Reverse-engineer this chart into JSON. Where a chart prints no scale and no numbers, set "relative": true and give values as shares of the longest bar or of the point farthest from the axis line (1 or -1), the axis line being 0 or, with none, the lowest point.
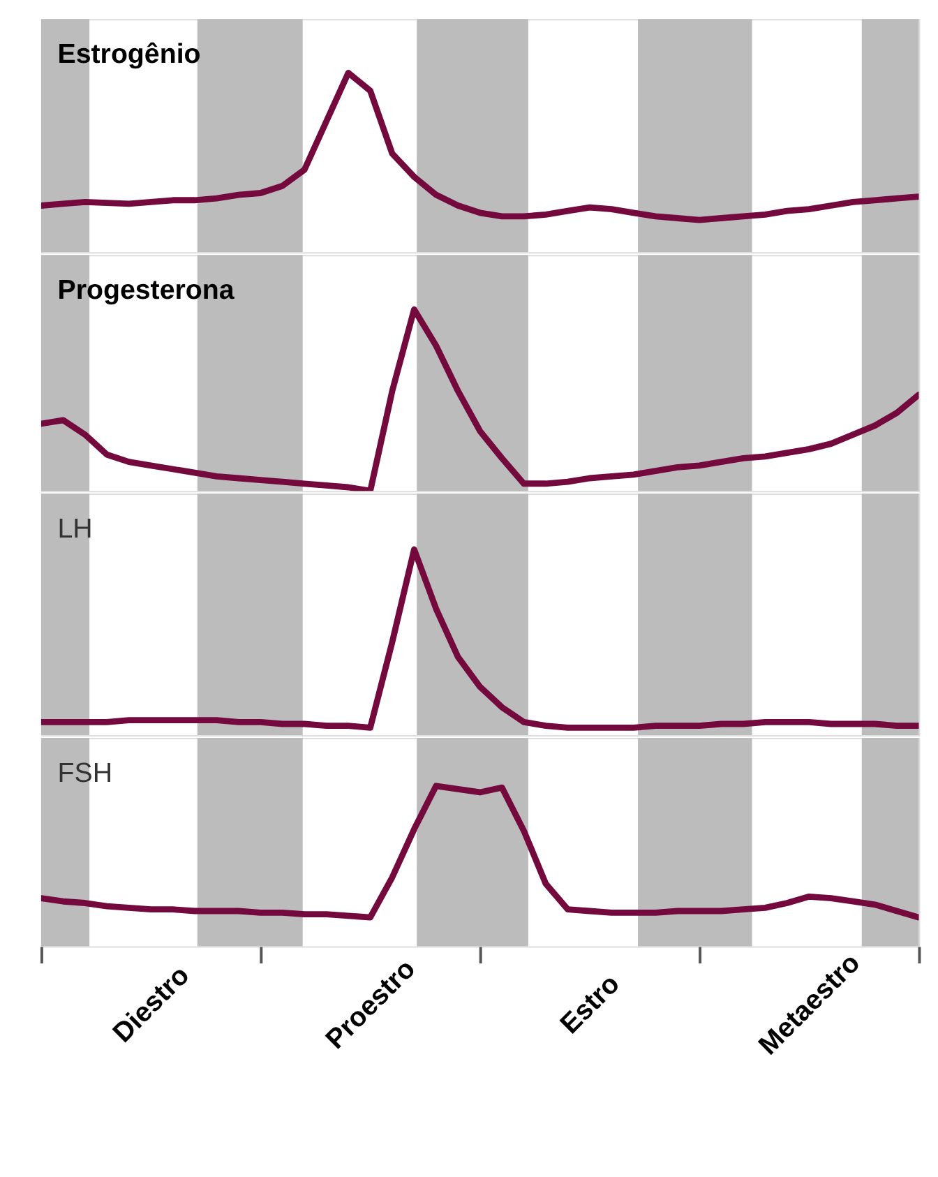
{
  "chart_data": [
    {
      "type": "line",
      "title": "Estrogênio",
      "relative": true,
      "tick_labels": false,
      "categories": [
        null,
        null,
        null,
        null,
        null,
        null,
        null,
        null,
        null,
        null,
        null,
        null,
        null,
        null,
        null,
        null,
        null,
        null,
        null,
        null,
        null,
        null,
        null,
        null,
        null,
        null,
        null,
        null,
        null,
        null,
        null,
        null,
        null,
        null,
        null,
        null,
        null,
        null,
        null,
        null,
        null
      ],
      "series": [
        {
          "color": "#74093d",
          "values": [
            0.26,
            0.27,
            0.28,
            0.275,
            0.27,
            0.28,
            0.29,
            0.29,
            0.3,
            0.32,
            0.33,
            0.37,
            0.46,
            0.73,
            1,
            0.9,
            0.55,
            0.42,
            0.32,
            0.26,
            0.22,
            0.2,
            0.2,
            0.21,
            0.23,
            0.25,
            0.24,
            0.22,
            0.2,
            0.19,
            0.18,
            0.19,
            0.2,
            0.21,
            0.23,
            0.24,
            0.26,
            0.28,
            0.29,
            0.3,
            0.31
          ]
        }
      ]
    },
    {
      "type": "line",
      "title": "Progesterona",
      "relative": true,
      "tick_labels": false,
      "categories": [
        null,
        null,
        null,
        null,
        null,
        null,
        null,
        null,
        null,
        null,
        null,
        null,
        null,
        null,
        null,
        null,
        null,
        null,
        null,
        null,
        null,
        null,
        null,
        null,
        null,
        null,
        null,
        null,
        null,
        null,
        null,
        null,
        null,
        null,
        null,
        null,
        null,
        null,
        null,
        null,
        null
      ],
      "series": [
        {
          "color": "#74093d",
          "values": [
            0.37,
            0.39,
            0.31,
            0.2,
            0.16,
            0.14,
            0.12,
            0.1,
            0.08,
            0.07,
            0.06,
            0.05,
            0.04,
            0.03,
            0.02,
            0,
            0.55,
            1,
            0.8,
            0.55,
            0.33,
            0.18,
            0.04,
            0.04,
            0.05,
            0.07,
            0.08,
            0.09,
            0.11,
            0.13,
            0.14,
            0.16,
            0.18,
            0.19,
            0.21,
            0.23,
            0.26,
            0.31,
            0.36,
            0.43,
            0.53
          ]
        }
      ]
    },
    {
      "type": "line",
      "title": "LH",
      "relative": true,
      "tick_labels": false,
      "categories": [
        null,
        null,
        null,
        null,
        null,
        null,
        null,
        null,
        null,
        null,
        null,
        null,
        null,
        null,
        null,
        null,
        null,
        null,
        null,
        null,
        null,
        null,
        null,
        null,
        null,
        null,
        null,
        null,
        null,
        null,
        null,
        null,
        null,
        null,
        null,
        null,
        null,
        null,
        null,
        null,
        null
      ],
      "series": [
        {
          "color": "#74093d",
          "values": [
            0.07,
            0.07,
            0.07,
            0.07,
            0.08,
            0.08,
            0.08,
            0.08,
            0.08,
            0.07,
            0.07,
            0.06,
            0.06,
            0.05,
            0.05,
            0.04,
            0.5,
            1,
            0.68,
            0.42,
            0.26,
            0.15,
            0.07,
            0.05,
            0.04,
            0.04,
            0.04,
            0.04,
            0.05,
            0.05,
            0.05,
            0.06,
            0.06,
            0.07,
            0.07,
            0.07,
            0.06,
            0.06,
            0.06,
            0.05,
            0.05
          ]
        }
      ]
    },
    {
      "type": "line",
      "title": "FSH",
      "relative": true,
      "categories": [
        null,
        null,
        null,
        null,
        null,
        "Diestro",
        null,
        null,
        null,
        null,
        null,
        null,
        null,
        null,
        null,
        "Proestro",
        null,
        null,
        null,
        null,
        null,
        null,
        null,
        null,
        null,
        "Estro",
        null,
        null,
        null,
        null,
        null,
        null,
        null,
        null,
        null,
        "Metaestro",
        null,
        null,
        null,
        null,
        null
      ],
      "series": [
        {
          "color": "#74093d",
          "values": [
            0.3,
            0.28,
            0.27,
            0.25,
            0.24,
            0.23,
            0.23,
            0.22,
            0.22,
            0.22,
            0.21,
            0.21,
            0.2,
            0.2,
            0.19,
            0.18,
            0.43,
            0.73,
            1,
            0.98,
            0.96,
            0.99,
            0.72,
            0.39,
            0.23,
            0.22,
            0.21,
            0.21,
            0.21,
            0.22,
            0.22,
            0.22,
            0.23,
            0.24,
            0.27,
            0.31,
            0.3,
            0.28,
            0.26,
            0.22,
            0.18
          ]
        }
      ]
    }
  ]
}
